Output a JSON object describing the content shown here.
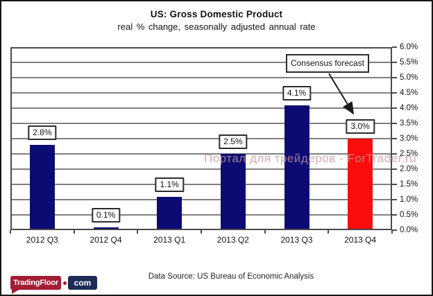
{
  "chart_data": {
    "type": "bar",
    "title": "US: Gross Domestic Product",
    "subtitle": "real % change, seasonally adjusted annual rate",
    "categories": [
      "2012 Q3",
      "2012 Q4",
      "2013 Q1",
      "2013 Q2",
      "2013 Q3",
      "2013 Q4"
    ],
    "values": [
      2.8,
      0.1,
      1.1,
      2.5,
      4.1,
      3.0
    ],
    "bar_labels": [
      "2.8%",
      "0.1%",
      "1.1%",
      "2.5%",
      "4.1%",
      "3.0%"
    ],
    "bar_colors": [
      "#0b0b73",
      "#0b0b73",
      "#0b0b73",
      "#0b0b73",
      "#0b0b73",
      "#f90d0d"
    ],
    "ylim": [
      0.0,
      6.0
    ],
    "ytick_step": 0.5,
    "ytick_labels_top_to_bottom": [
      "6.0%",
      "5.5%",
      "5.0%",
      "4.5%",
      "4.0%",
      "3.5%",
      "3.0%",
      "2.5%",
      "2.0%",
      "1.5%",
      "1.0%",
      "0.5%",
      "0.0%"
    ],
    "grid": "horizontal",
    "legend": "none",
    "annotation": {
      "text": "Consensus forecast",
      "points_to": "2013 Q4"
    }
  },
  "watermark": "Портал для трейдеров - ForTrader.ru",
  "footer": "Data Source: US Bureau of Economic Analysis",
  "logo": {
    "part1": "TradingFloor",
    "part2": "com"
  },
  "colors": {
    "bar_navy": "#0b0b73",
    "bar_red": "#f90d0d",
    "gridline": "#7f7f7f",
    "axis": "#4a4a4a",
    "watermark": "#cc96a0",
    "logo_red": "#a21c33",
    "logo_navy": "#1d2c56"
  }
}
